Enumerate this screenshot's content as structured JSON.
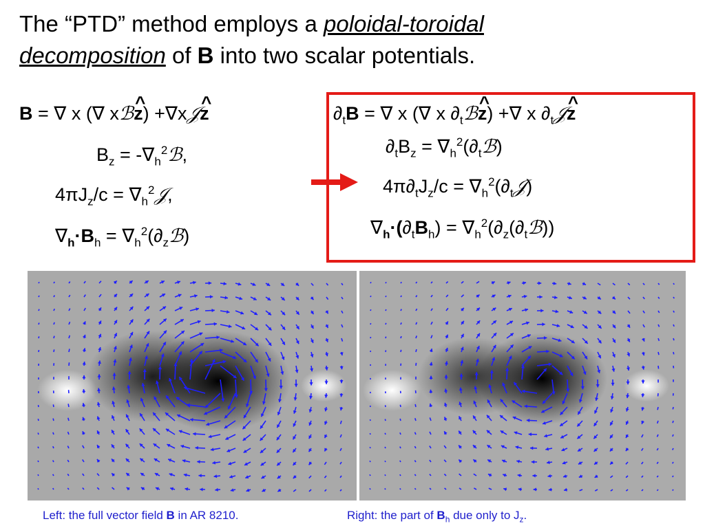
{
  "title": {
    "prefix": "The “PTD” method employs a",
    "emph_line1": "poloidal-toroidal",
    "emph_line2": "decomposition",
    "middle": " of ",
    "bold_b": "B",
    "suffix": " into two scalar potentials."
  },
  "left_equations": {
    "line1": {
      "b": "B",
      "eq": " = ",
      "nabla": "∇",
      "x1": " x (",
      "nabla2": "∇",
      "x2": " x",
      "calB": "ℬ",
      "z1": "z",
      "close": ") +",
      "nabla3": "∇",
      "x3": "x",
      "calJ": "𝒥",
      "z2": "z"
    },
    "line2": {
      "B": "B",
      "sub_z": "z",
      "eq": " = -",
      "nabla": "∇",
      "sub_h": "h",
      "sup2": "2",
      "calB": "ℬ",
      "comma": ","
    },
    "line3": {
      "pre": "4",
      "pi": "π",
      "J": "J",
      "sub_z": "z",
      "mid": "/c = ",
      "nabla": "∇",
      "sub_h": "h",
      "sup2": "2",
      "calJ": "𝒥",
      "comma": ","
    },
    "line4": {
      "nabla": "∇",
      "sub_h": "h",
      "dot": "·",
      "B": "B",
      "sub_h2": "h",
      "eq": " = ",
      "nabla2": "∇",
      "sub_h3": "h",
      "sup2": "2",
      "open": "(",
      "partial": "∂",
      "sub_z": "z",
      "calB": "ℬ",
      "close": ")"
    }
  },
  "right_equations": {
    "line1": {
      "partial": "∂",
      "sub_t": "t",
      "b": "B",
      "eq": "  = ",
      "nabla": "∇",
      "x1": " x (",
      "nabla2": "∇",
      "x2": " x ",
      "partial2": "∂",
      "sub_t2": "t",
      "calB": "ℬ",
      "z1": "z",
      "close": ") +",
      "nabla3": "∇",
      "x3": " x ",
      "partial3": "∂",
      "sub_t3": "t",
      "calJ": "𝒥",
      "z2": "z"
    },
    "line2": {
      "partial": "∂",
      "sub_t": "t",
      "B": "B",
      "sub_z": "z",
      "eq": " = ",
      "nabla": "∇",
      "sub_h": "h",
      "sup2": "2",
      "open": "(",
      "partial2": "∂",
      "sub_t2": "t",
      "calB": "ℬ",
      "close": ")"
    },
    "line3": {
      "pre": "4",
      "pi": "π",
      "partial": "∂",
      "sub_t": "t",
      "J": "J",
      "sub_z": "z",
      "mid": "/c = ",
      "nabla": "∇",
      "sub_h": "h",
      "sup2": "2",
      "open": "(",
      "partial2": "∂",
      "sub_t2": "t",
      "calJ": "𝒥",
      "close": ")"
    },
    "line4": {
      "nabla": "∇",
      "sub_h": "h",
      "dot": "·(",
      "partial": "∂",
      "sub_t": "t",
      "B": "B",
      "sub_h2": "h",
      "eq": ") = ",
      "nabla2": "∇",
      "sub_h3": "h",
      "sup2": "2",
      "open": "(",
      "partial2": "∂",
      "sub_z": "z",
      "open2": "(",
      "partial3": "∂",
      "sub_t2": "t",
      "calB": "ℬ",
      "close": "))"
    }
  },
  "highlight": {
    "box_color": "#e41b17",
    "arrow_color": "#e41b17"
  },
  "images": {
    "left": {
      "description_icon": "vector-field-image",
      "arrow_color": "#1f1fff"
    },
    "right": {
      "description_icon": "vector-field-image",
      "arrow_color": "#1f1fff"
    }
  },
  "captions": {
    "left": {
      "pre": "Left: the full vector field ",
      "b": "B",
      "post": " in AR 8210."
    },
    "right": {
      "pre": "Right: the part of ",
      "b": "B",
      "sub_h": "h",
      "mid": " due only to J",
      "sub_z": "z",
      "post": "."
    },
    "color": "#1f1fcc"
  }
}
